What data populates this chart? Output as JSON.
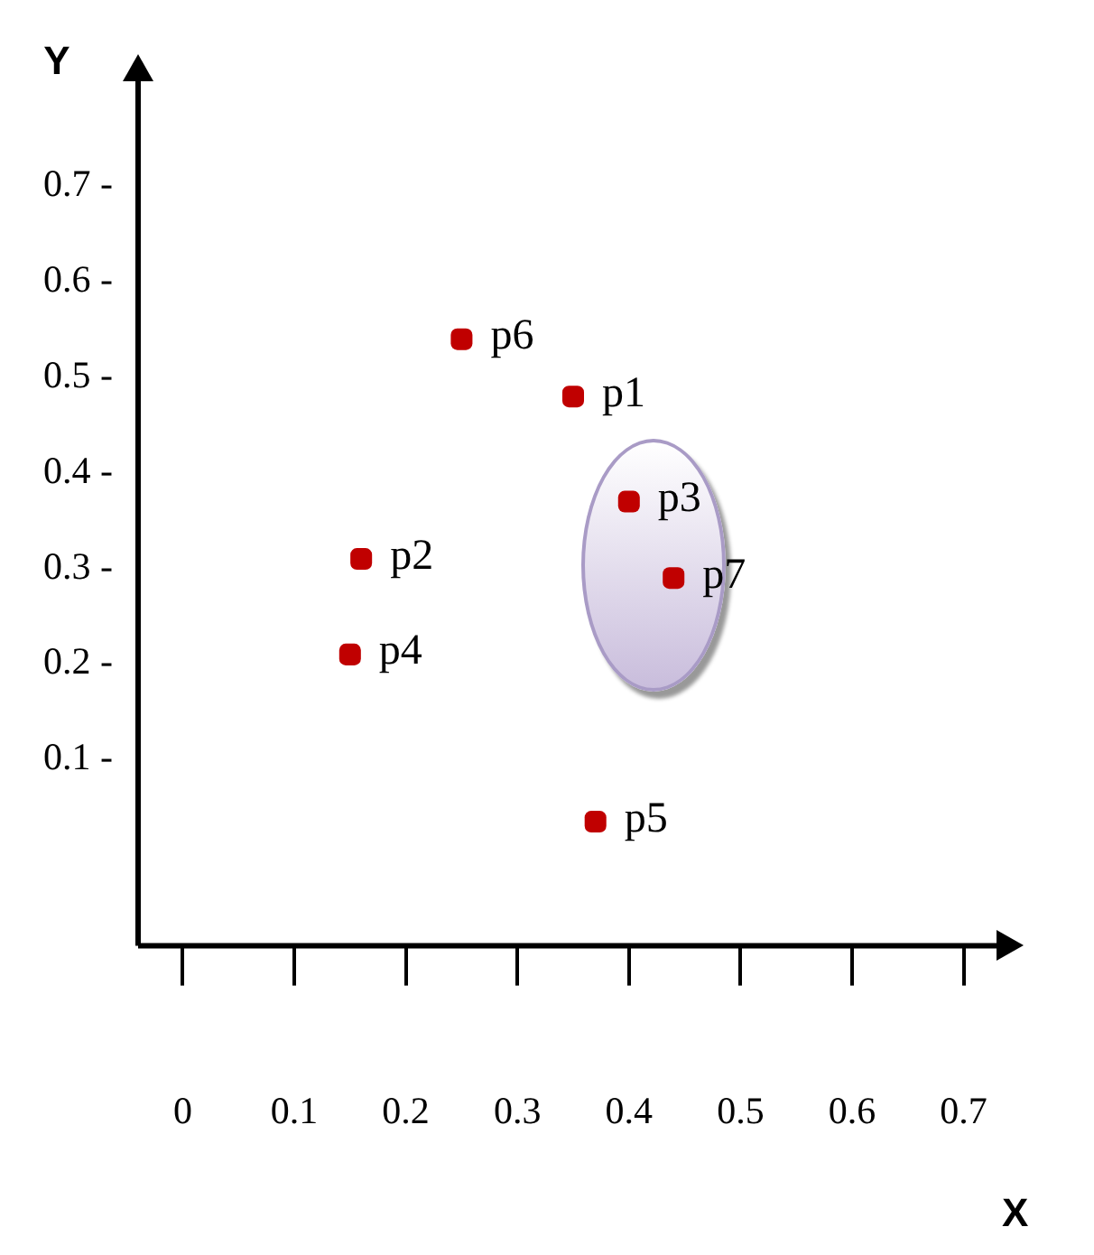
{
  "chart_data": {
    "type": "scatter",
    "xlabel": "X",
    "ylabel": "Y",
    "x": [
      0.35,
      0.16,
      0.4,
      0.15,
      0.37,
      0.25,
      0.44
    ],
    "series": [
      {
        "color": "#c00000",
        "values": [
          0.48,
          0.31,
          0.37,
          0.21,
          0.035,
          0.54,
          0.29
        ]
      }
    ],
    "annotations": [
      {
        "text": "p1",
        "x": 0.35,
        "y": 0.48
      },
      {
        "text": "p2",
        "x": 0.16,
        "y": 0.31
      },
      {
        "text": "p3",
        "x": 0.4,
        "y": 0.37
      },
      {
        "text": "p4",
        "x": 0.15,
        "y": 0.21
      },
      {
        "text": "p5",
        "x": 0.37,
        "y": 0.035
      },
      {
        "text": "p6",
        "x": 0.25,
        "y": 0.54
      },
      {
        "text": "p7",
        "x": 0.44,
        "y": 0.29
      }
    ],
    "xlim": [
      -0.04,
      0.73
    ],
    "ylim": [
      -0.095,
      0.81
    ],
    "xticks": [
      0,
      0.1,
      0.2,
      0.3,
      0.4,
      0.5,
      0.6,
      0.7
    ],
    "yticks": [
      {
        "value": 0.1,
        "label": "0.1 -"
      },
      {
        "value": 0.2,
        "label": "0.2 -"
      },
      {
        "value": 0.3,
        "label": "0.3 -"
      },
      {
        "value": 0.4,
        "label": "0.4 -"
      },
      {
        "value": 0.5,
        "label": "0.5 -"
      },
      {
        "value": 0.6,
        "label": "0.6 -"
      },
      {
        "value": 0.7,
        "label": "0.7 -"
      }
    ],
    "marker": "square",
    "grid": false,
    "legend": false
  }
}
